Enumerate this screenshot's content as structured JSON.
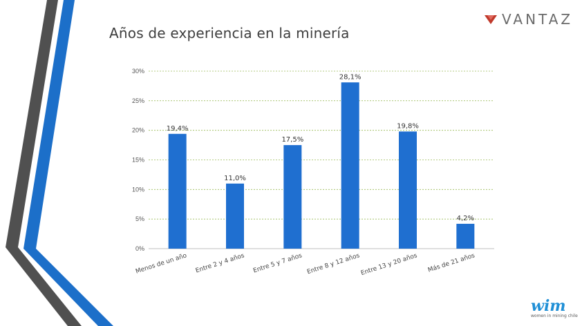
{
  "title": "Años de experiencia en la minería",
  "brand": {
    "vantaz": "VANTAZ",
    "wim": "wim",
    "wim_tagline": "women in mining chile"
  },
  "colors": {
    "bar": "#1f6fd0",
    "grid": "#9bbb59",
    "stripe_gray": "#505050",
    "stripe_blue": "#1c6fc9",
    "stripe_dark_blue": "#0f4c9a"
  },
  "chart_data": {
    "type": "bar",
    "categories": [
      "Menos de un año",
      "Entre 2 y 4 años",
      "Entre 5 y 7 años",
      "Entre 8 y 12 años",
      "Entre 13 y 20 años",
      "Más de 21 años"
    ],
    "values": [
      19.4,
      11.0,
      17.5,
      28.1,
      19.8,
      4.2
    ],
    "data_labels": [
      "19,4%",
      "11,0%",
      "17,5%",
      "28,1%",
      "19,8%",
      "4,2%"
    ],
    "ylim": [
      0,
      30
    ],
    "yticks": [
      0,
      5,
      10,
      15,
      20,
      25,
      30
    ],
    "ytick_labels": [
      "0%",
      "5%",
      "10%",
      "15%",
      "20%",
      "25%",
      "30%"
    ],
    "grid": true,
    "legend": "none",
    "xlabel": "",
    "ylabel": ""
  }
}
